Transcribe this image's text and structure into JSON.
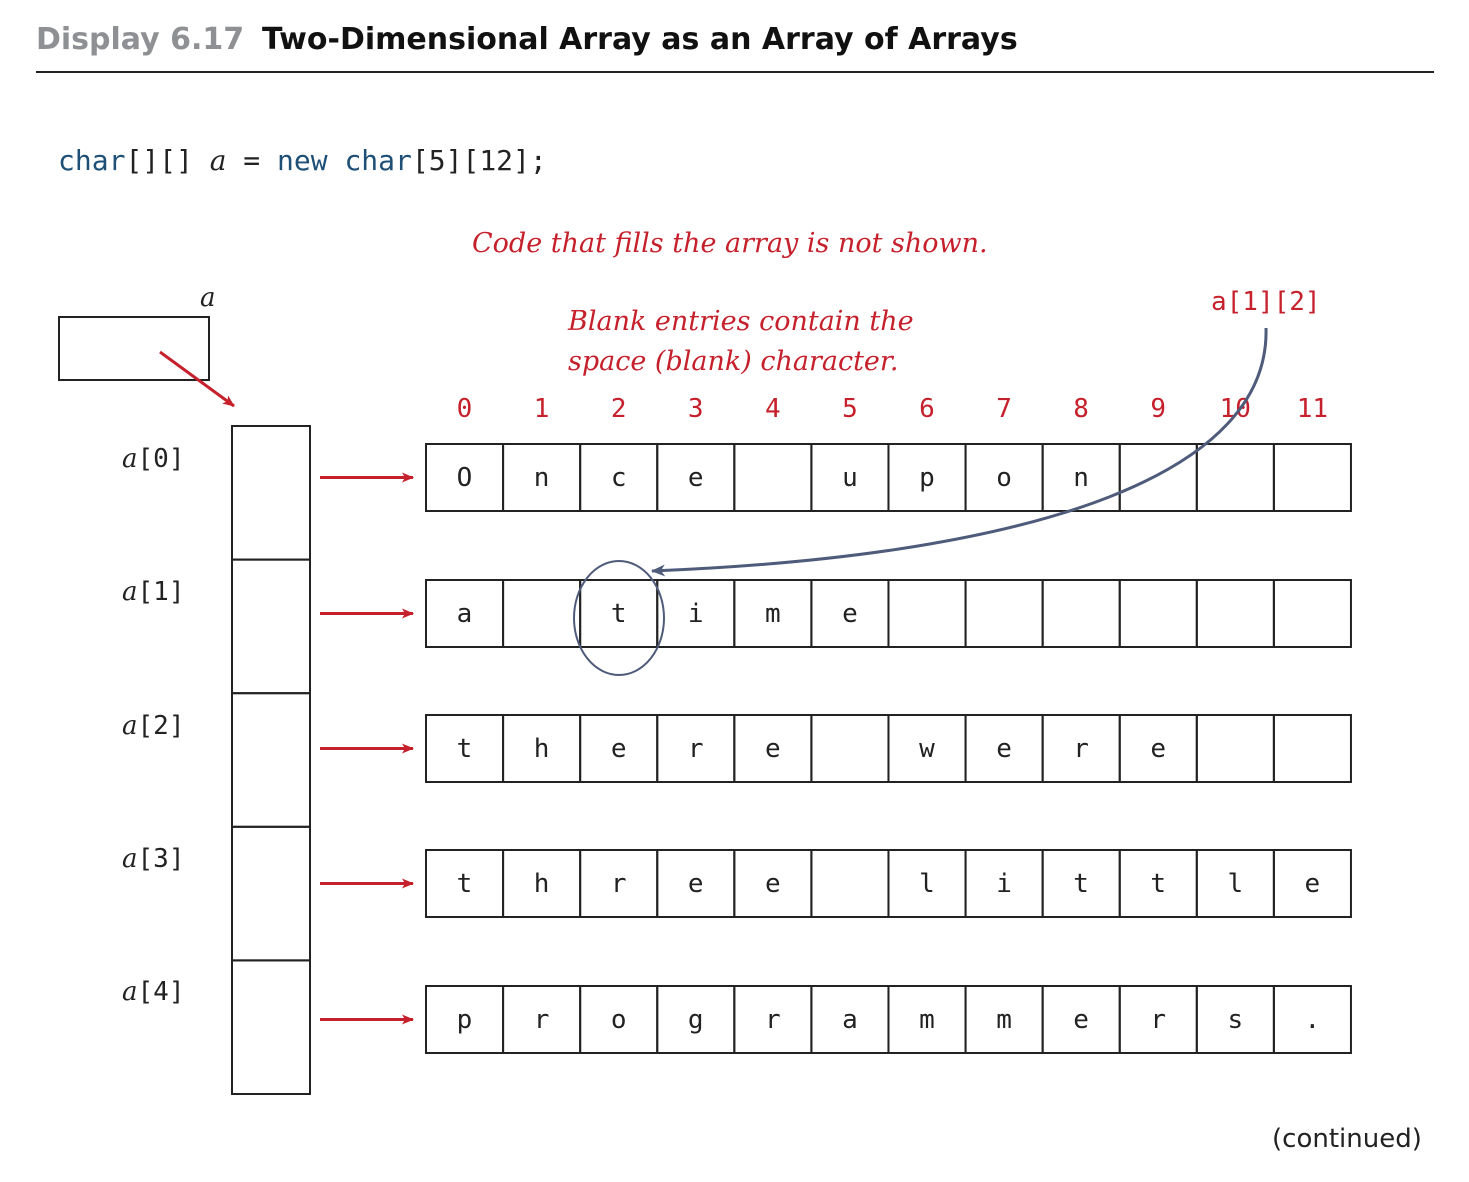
{
  "header": {
    "label": "Display 6.17",
    "title": "Two-Dimensional Array as an Array of Arrays"
  },
  "code": {
    "type1": "char",
    "brackets1": "[][]",
    "var": "a",
    "eq": "=",
    "kw_new": "new",
    "type2": "char",
    "dims": "[5][12];"
  },
  "notes": {
    "fill_note": "Code that fills the array is not shown.",
    "blank_note_line1": "Blank entries contain the",
    "blank_note_line2": "space (blank) character."
  },
  "reference_var": "a",
  "element_ref": "a[1][2]",
  "column_indices": [
    "0",
    "1",
    "2",
    "3",
    "4",
    "5",
    "6",
    "7",
    "8",
    "9",
    "10",
    "11"
  ],
  "rows": [
    {
      "label_var": "a",
      "label_idx": "[0]",
      "cells": [
        "O",
        "n",
        "c",
        "e",
        " ",
        "u",
        "p",
        "o",
        "n",
        " ",
        " ",
        " "
      ]
    },
    {
      "label_var": "a",
      "label_idx": "[1]",
      "cells": [
        "a",
        " ",
        "t",
        "i",
        "m",
        "e",
        " ",
        " ",
        " ",
        " ",
        " ",
        " "
      ]
    },
    {
      "label_var": "a",
      "label_idx": "[2]",
      "cells": [
        "t",
        "h",
        "e",
        "r",
        "e",
        " ",
        "w",
        "e",
        "r",
        "e",
        " ",
        " "
      ]
    },
    {
      "label_var": "a",
      "label_idx": "[3]",
      "cells": [
        "t",
        "h",
        "r",
        "e",
        "e",
        " ",
        "l",
        "i",
        "t",
        "t",
        "l",
        "e"
      ]
    },
    {
      "label_var": "a",
      "label_idx": "[4]",
      "cells": [
        "p",
        "r",
        "o",
        "g",
        "r",
        "a",
        "m",
        "m",
        "e",
        "r",
        "s",
        "."
      ]
    }
  ],
  "highlight": {
    "row": 1,
    "col": 2
  },
  "colors": {
    "red": "#c5202b",
    "blue": "#4f5b7a",
    "text": "#222222",
    "header_gray": "#8f9094"
  },
  "footer": {
    "continued": "(continued)"
  }
}
